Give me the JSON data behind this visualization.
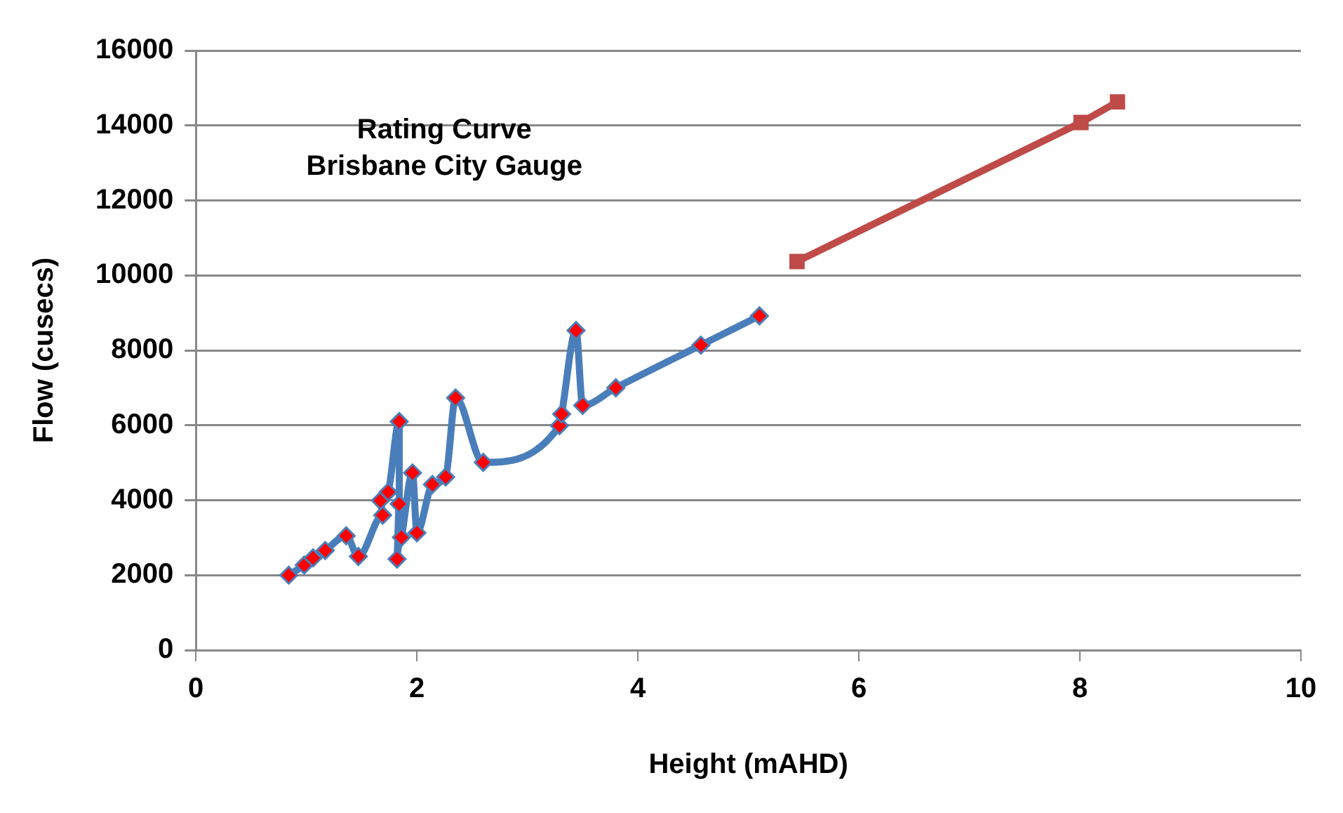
{
  "chart_data": {
    "type": "line",
    "title": "Rating Curve\nBrisbane City Gauge",
    "xlabel": "Height (mAHD)",
    "ylabel": "Flow (cusecs)",
    "xlim": [
      0,
      10
    ],
    "xticks": [
      0,
      2,
      4,
      6,
      8,
      10
    ],
    "ylim": [
      0,
      16000
    ],
    "yticks": [
      0,
      2000,
      4000,
      6000,
      8000,
      10000,
      12000,
      14000,
      16000
    ],
    "grid": "y",
    "legend": false,
    "series": [
      {
        "color": "#4a7ebb",
        "marker": "diamond",
        "x": [
          0.84,
          0.98,
          1.06,
          1.17,
          1.36,
          1.47,
          1.69,
          1.67,
          1.74,
          1.84,
          1.84,
          1.82,
          1.86,
          1.96,
          2.0,
          2.14,
          2.26,
          2.35,
          2.6,
          3.29,
          3.31,
          3.44,
          3.5,
          3.8,
          4.57,
          5.1
        ],
        "values": [
          2000,
          2270,
          2460,
          2660,
          3050,
          2500,
          3600,
          3990,
          4220,
          6100,
          3900,
          2430,
          3010,
          4730,
          3130,
          4420,
          4620,
          6730,
          5010,
          5990,
          6300,
          8530,
          6530,
          7000,
          8140,
          8920
        ]
      },
      {
        "color": "#be4b48",
        "marker": "square",
        "x": [
          5.44,
          8.01,
          8.34
        ],
        "values": [
          10370,
          14080,
          14630
        ]
      }
    ]
  }
}
